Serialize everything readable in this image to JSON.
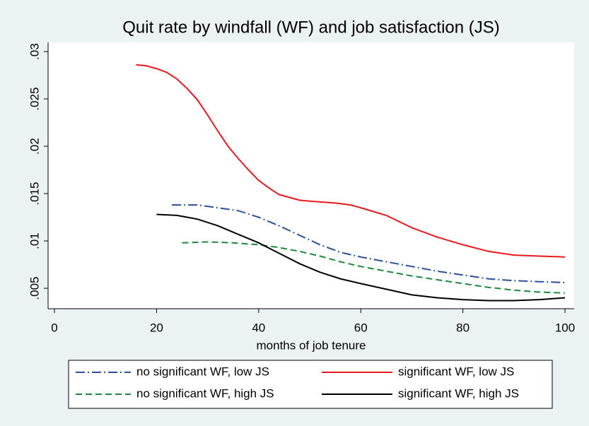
{
  "chart_data": {
    "type": "line",
    "title": "Quit rate by windfall (WF) and job satisfaction (JS)",
    "x_label": "months of job tenure",
    "xlim": [
      -1.25,
      101.8
    ],
    "xticks": [
      0,
      20,
      40,
      60,
      80,
      100
    ],
    "ylim": [
      0.00284,
      0.03097
    ],
    "yticks": [
      {
        "value": 0.005,
        "label": ".005"
      },
      {
        "value": 0.01,
        "label": ".01"
      },
      {
        "value": 0.015,
        "label": ".015"
      },
      {
        "value": 0.02,
        "label": ".02"
      },
      {
        "value": 0.025,
        "label": ".025"
      },
      {
        "value": 0.03,
        "label": ".03"
      }
    ],
    "grid": false,
    "legend": "bottom",
    "series": [
      {
        "name": "no significant WF, low JS",
        "color": "#2a4f9c",
        "dash": "dashdot",
        "x": [
          23,
          28,
          32,
          36,
          40,
          44,
          48,
          52,
          56,
          60,
          65,
          70,
          75,
          80,
          85,
          90,
          95,
          100
        ],
        "values": [
          0.0138,
          0.0138,
          0.0135,
          0.0132,
          0.0125,
          0.0116,
          0.0106,
          0.0096,
          0.0088,
          0.0083,
          0.0078,
          0.0073,
          0.0068,
          0.0064,
          0.006,
          0.0058,
          0.0057,
          0.0056
        ]
      },
      {
        "name": "significant WF, low JS",
        "color": "#e8191c",
        "dash": "solid",
        "x": [
          16,
          18,
          20,
          22,
          24,
          26,
          28,
          30,
          32,
          34,
          36,
          38,
          40,
          42,
          44,
          46,
          48,
          50,
          55,
          58,
          60,
          65,
          70,
          75,
          80,
          85,
          90,
          95,
          100
        ],
        "values": [
          0.0286,
          0.0285,
          0.0282,
          0.0278,
          0.0271,
          0.0261,
          0.0249,
          0.0233,
          0.0216,
          0.02,
          0.0187,
          0.0175,
          0.0164,
          0.0156,
          0.0149,
          0.0146,
          0.0143,
          0.0142,
          0.014,
          0.0138,
          0.0135,
          0.0127,
          0.0114,
          0.0104,
          0.0096,
          0.0089,
          0.0085,
          0.0084,
          0.0083
        ]
      },
      {
        "name": "no significant WF, high JS",
        "color": "#1a8a3a",
        "dash": "dashed",
        "x": [
          25,
          30,
          35,
          40,
          44,
          48,
          52,
          56,
          60,
          65,
          70,
          75,
          80,
          85,
          90,
          95,
          100
        ],
        "values": [
          0.0098,
          0.0099,
          0.0098,
          0.0096,
          0.0093,
          0.0089,
          0.0084,
          0.0078,
          0.0073,
          0.0068,
          0.0063,
          0.0059,
          0.0055,
          0.0051,
          0.0048,
          0.0046,
          0.0045
        ]
      },
      {
        "name": "significant WF, high JS",
        "color": "#000000",
        "dash": "solid",
        "x": [
          20,
          24,
          28,
          32,
          36,
          40,
          44,
          48,
          52,
          56,
          60,
          65,
          70,
          75,
          80,
          85,
          90,
          95,
          100
        ],
        "values": [
          0.0128,
          0.0127,
          0.0123,
          0.0116,
          0.0107,
          0.0098,
          0.0087,
          0.0076,
          0.0067,
          0.006,
          0.0055,
          0.0049,
          0.0043,
          0.004,
          0.0038,
          0.0037,
          0.0037,
          0.0038,
          0.004
        ]
      }
    ]
  }
}
